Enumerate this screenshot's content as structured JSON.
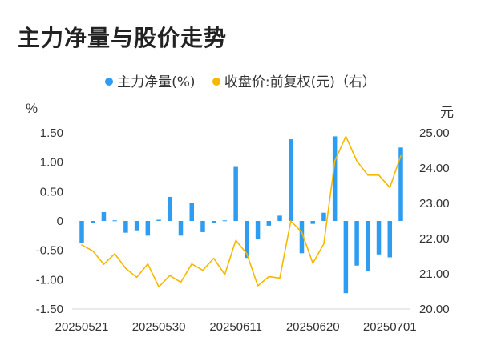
{
  "title": "主力净量与股价走势",
  "chart_data": {
    "type": "bar",
    "title": "主力净量与股价走势",
    "legend": {
      "position": "top-center",
      "items": [
        {
          "label": "主力净量(%)",
          "color": "#2e9cf0"
        },
        {
          "label": "收盘价:前复权(元)（右）",
          "color": "#f5b800"
        }
      ]
    },
    "left_axis": {
      "unit": "%",
      "range": [
        -1.5,
        1.5
      ],
      "ticks": [
        "1.50",
        "1.00",
        "0.50",
        "0",
        "-0.50",
        "-1.00",
        "-1.50"
      ]
    },
    "right_axis": {
      "unit": "元",
      "range": [
        20.0,
        25.0
      ],
      "ticks": [
        "25.00",
        "24.00",
        "23.00",
        "22.00",
        "21.00",
        "20.00"
      ]
    },
    "x_tick_labels": [
      "20250521",
      "20250530",
      "20250611",
      "20250620",
      "20250701"
    ],
    "x_tick_indices": [
      0,
      7,
      14,
      21,
      28
    ],
    "series": [
      {
        "name": "主力净量(%)",
        "kind": "bar",
        "axis": "left",
        "color": "#2e9cf0",
        "values": [
          -0.38,
          -0.03,
          0.15,
          0.01,
          -0.2,
          -0.16,
          -0.25,
          0.02,
          0.41,
          -0.25,
          0.3,
          -0.19,
          -0.03,
          0.01,
          0.92,
          -0.63,
          -0.3,
          -0.08,
          0.09,
          1.39,
          -0.55,
          -0.05,
          0.14,
          1.44,
          -1.23,
          -0.76,
          -0.86,
          -0.57,
          -0.62,
          1.25
        ]
      },
      {
        "name": "收盘价:前复权(元)（右）",
        "kind": "line",
        "axis": "right",
        "color": "#f5b800",
        "values": [
          21.82,
          21.65,
          21.27,
          21.57,
          21.15,
          20.9,
          21.28,
          20.63,
          20.95,
          20.76,
          21.28,
          21.1,
          21.44,
          20.98,
          21.95,
          21.57,
          20.66,
          20.92,
          20.88,
          22.5,
          22.18,
          21.3,
          21.85,
          24.2,
          24.9,
          24.2,
          23.8,
          23.8,
          23.45,
          24.35
        ]
      }
    ]
  }
}
